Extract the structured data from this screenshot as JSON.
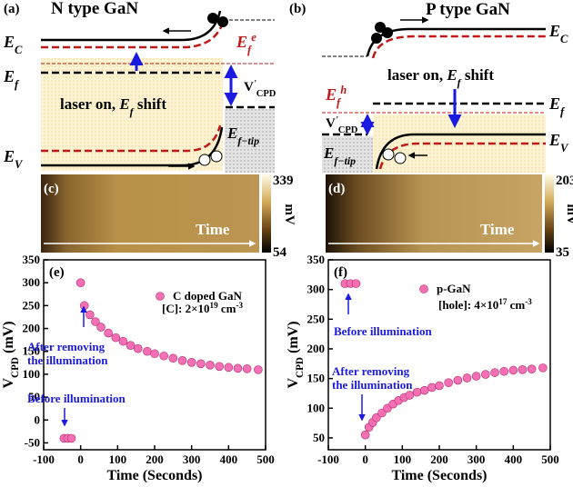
{
  "panels": {
    "a": {
      "label": "(a)",
      "title": "N type GaN",
      "ec": [
        {
          "t": "E",
          "s": "i"
        },
        {
          "t": "C",
          "s": "sub"
        }
      ],
      "efe": [
        {
          "t": "E",
          "s": "i"
        },
        {
          "t": "f",
          "s": "sub"
        },
        {
          "t": "e",
          "s": "sup"
        }
      ],
      "ef": [
        {
          "t": "E",
          "s": "i"
        },
        {
          "t": "f",
          "s": "sub"
        }
      ],
      "shift": [
        {
          "t": "laser on, "
        },
        {
          "t": "E",
          "s": "i"
        },
        {
          "t": "f",
          "s": "sub"
        },
        {
          "t": " shift"
        }
      ],
      "vcpd": [
        {
          "t": "V"
        },
        {
          "t": "'",
          "s": "sup"
        },
        {
          "t": "CPD",
          "s": "dn"
        }
      ],
      "eftip": [
        {
          "t": "E",
          "s": "i"
        },
        {
          "t": "f−tip",
          "s": "sub"
        }
      ],
      "ev": [
        {
          "t": "E",
          "s": "i"
        },
        {
          "t": "V",
          "s": "sub"
        }
      ]
    },
    "b": {
      "label": "(b)",
      "title": "P type GaN",
      "ec": [
        {
          "t": "E",
          "s": "i"
        },
        {
          "t": "C",
          "s": "sub"
        }
      ],
      "shift": [
        {
          "t": "laser on, "
        },
        {
          "t": "E",
          "s": "i"
        },
        {
          "t": "f",
          "s": "sub"
        },
        {
          "t": " shift"
        }
      ],
      "efh": [
        {
          "t": "E",
          "s": "i"
        },
        {
          "t": "f",
          "s": "sub"
        },
        {
          "t": "h",
          "s": "sup"
        }
      ],
      "ef": [
        {
          "t": "E",
          "s": "i"
        },
        {
          "t": "f",
          "s": "sub"
        }
      ],
      "vcpd": [
        {
          "t": "V"
        },
        {
          "t": "'",
          "s": "sup"
        },
        {
          "t": "CPD",
          "s": "dn"
        }
      ],
      "eftip": [
        {
          "t": "E",
          "s": "i"
        },
        {
          "t": "f−tip",
          "s": "sub"
        }
      ],
      "ev": [
        {
          "t": "E",
          "s": "i"
        },
        {
          "t": "V",
          "s": "sub"
        }
      ]
    },
    "c": {
      "label": "(c)",
      "time": "Time",
      "clim": [
        54,
        339
      ],
      "clabel": "mV"
    },
    "d": {
      "label": "(d)",
      "time": "Time",
      "clim": [
        35,
        203
      ],
      "clabel": "mV"
    }
  },
  "chart_data": [
    {
      "type": "scatter",
      "label": "(e)",
      "xlabel": "Time (Seconds)",
      "ylabel": [
        {
          "t": "V"
        },
        {
          "t": "CPD",
          "s": "dn"
        },
        {
          "t": " (mV)"
        }
      ],
      "xlim": [
        -100,
        500
      ],
      "xticks": [
        -100,
        0,
        100,
        200,
        300,
        400,
        500
      ],
      "ylim": [
        -65,
        350
      ],
      "yticks": [
        -50,
        0,
        50,
        100,
        150,
        200,
        250,
        300,
        350
      ],
      "series": [
        {
          "name": "C doped GaN",
          "color": "#f46fb4",
          "x": [
            -45,
            -35,
            -25,
            0,
            10,
            25,
            40,
            55,
            75,
            95,
            115,
            135,
            155,
            180,
            200,
            225,
            250,
            275,
            300,
            325,
            350,
            375,
            400,
            425,
            450,
            480
          ],
          "values": [
            -40,
            -40,
            -40,
            300,
            250,
            230,
            215,
            203,
            190,
            180,
            172,
            163,
            156,
            150,
            145,
            140,
            135,
            130,
            126,
            123,
            120,
            117,
            115,
            113,
            112,
            110
          ]
        }
      ],
      "annotations": [
        [
          {
            "t": "[C]: 2×10"
          },
          {
            "t": "19",
            "s": "up"
          },
          {
            "t": " cm"
          },
          {
            "t": "-3",
            "s": "up"
          }
        ],
        [
          {
            "t": "After removing"
          }
        ],
        [
          {
            "t": "the illumination"
          }
        ],
        [
          {
            "t": "Before illumination"
          }
        ]
      ]
    },
    {
      "type": "scatter",
      "label": "(f)",
      "xlabel": "Time (Seconds)",
      "ylabel": [
        {
          "t": "V"
        },
        {
          "t": "CPD",
          "s": "dn"
        },
        {
          "t": " (mV)"
        }
      ],
      "xlim": [
        -100,
        500
      ],
      "xticks": [
        -100,
        0,
        100,
        200,
        300,
        400,
        500
      ],
      "ylim": [
        30,
        350
      ],
      "yticks": [
        50,
        100,
        150,
        200,
        250,
        300,
        350
      ],
      "series": [
        {
          "name": "p-GaN",
          "color": "#f46fb4",
          "x": [
            -55,
            -40,
            -25,
            0,
            10,
            20,
            30,
            45,
            60,
            75,
            90,
            105,
            120,
            140,
            160,
            180,
            200,
            225,
            250,
            275,
            300,
            325,
            350,
            375,
            400,
            425,
            450,
            480
          ],
          "values": [
            310,
            310,
            310,
            55,
            68,
            76,
            84,
            92,
            100,
            107,
            113,
            118,
            122,
            127,
            130,
            135,
            138,
            143,
            147,
            151,
            154,
            157,
            160,
            162,
            164,
            165,
            166,
            168
          ]
        }
      ],
      "annotations": [
        [
          {
            "t": "[hole]: 4×10"
          },
          {
            "t": "17",
            "s": "up"
          },
          {
            "t": " cm"
          },
          {
            "t": "-3",
            "s": "up"
          }
        ],
        [
          {
            "t": "Before illumination"
          }
        ],
        [
          {
            "t": "After removing"
          }
        ],
        [
          {
            "t": "the illumination"
          }
        ]
      ]
    }
  ]
}
